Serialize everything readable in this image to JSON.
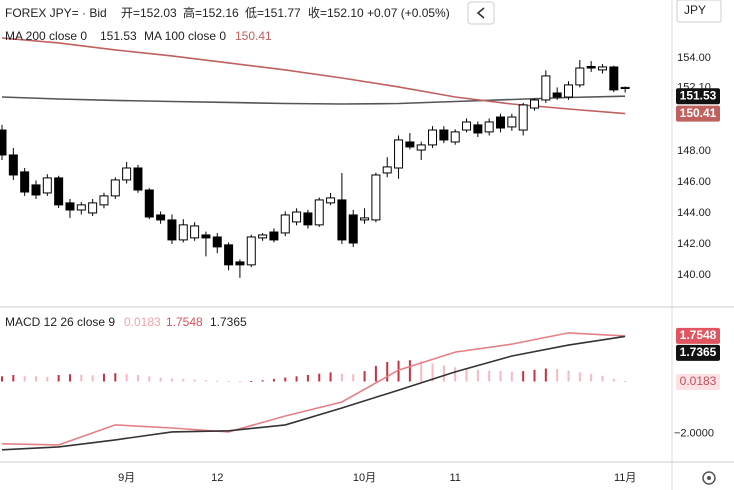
{
  "chart_data": [
    {
      "type": "candlestick",
      "title": "FOREX JPY= · Bid",
      "quote": [
        "开=152.03",
        "高=152.16",
        "低=151.77",
        "收=152.10",
        "+0.07 (+0.05%)"
      ],
      "currency": "JPY",
      "open": [
        149.35,
        147.74,
        146.65,
        145.81,
        145.29,
        146.26,
        144.65,
        144.19,
        144.0,
        144.52,
        145.1,
        146.13,
        146.9,
        145.48,
        143.87,
        143.55,
        142.26,
        142.39,
        142.58,
        142.45,
        141.94,
        140.84,
        140.65,
        142.39,
        142.77,
        142.71,
        143.42,
        144.0,
        143.23,
        144.65,
        144.84,
        143.87,
        143.55,
        143.55,
        146.58,
        146.9,
        148.58,
        148.06,
        148.39,
        149.35,
        148.58,
        149.35,
        149.68,
        149.23,
        150.19,
        149.55,
        149.35,
        150.77,
        151.29,
        151.74,
        151.48,
        152.26,
        153.45,
        153.23,
        153.42,
        152.03
      ],
      "high": [
        149.68,
        148.19,
        146.9,
        146.1,
        146.5,
        146.4,
        144.9,
        144.7,
        144.9,
        145.3,
        146.3,
        147.29,
        147.1,
        145.6,
        144.1,
        143.9,
        143.6,
        143.4,
        142.8,
        142.7,
        142.1,
        141.0,
        142.6,
        142.7,
        143.0,
        144.1,
        144.3,
        144.2,
        145.0,
        145.29,
        146.58,
        144.2,
        144.3,
        146.6,
        147.6,
        149.0,
        149.16,
        148.6,
        149.6,
        149.6,
        149.4,
        150.1,
        149.9,
        150.1,
        150.4,
        150.4,
        151.1,
        151.4,
        153.2,
        152.1,
        152.5,
        153.87,
        153.8,
        153.6,
        153.5,
        152.16
      ],
      "low": [
        147.42,
        146.13,
        145.1,
        144.9,
        145.1,
        144.32,
        143.68,
        143.9,
        143.8,
        144.3,
        144.9,
        145.9,
        145.3,
        143.6,
        143.3,
        142.0,
        142.1,
        142.2,
        141.2,
        141.4,
        140.3,
        139.81,
        140.5,
        142.2,
        142.1,
        142.5,
        143.2,
        143.0,
        143.1,
        144.5,
        142.0,
        141.8,
        143.3,
        143.4,
        146.3,
        146.2,
        148.1,
        147.42,
        148.2,
        148.5,
        148.4,
        149.2,
        148.9,
        149.0,
        149.2,
        149.3,
        149.0,
        150.6,
        151.1,
        151.3,
        151.3,
        152.1,
        153.1,
        153.0,
        151.8,
        151.77
      ],
      "close": [
        147.74,
        146.45,
        145.35,
        145.16,
        146.26,
        144.52,
        144.19,
        144.52,
        144.65,
        145.1,
        146.13,
        146.9,
        145.48,
        143.74,
        143.55,
        142.26,
        143.23,
        143.16,
        142.39,
        141.81,
        140.65,
        140.65,
        142.45,
        142.58,
        142.26,
        143.87,
        144.06,
        143.23,
        144.84,
        144.97,
        142.26,
        142.06,
        143.68,
        146.45,
        146.97,
        148.71,
        148.26,
        148.39,
        149.35,
        148.71,
        149.23,
        149.87,
        149.16,
        149.87,
        149.48,
        150.19,
        150.97,
        151.29,
        152.84,
        151.48,
        152.26,
        153.35,
        153.35,
        153.42,
        151.94,
        152.1
      ],
      "up_color": "#ffffff",
      "down_color": "#000000",
      "last_label": {
        "value": 152.1,
        "label": "152.10"
      },
      "lines": [
        {
          "name": "MA 200 close 0",
          "color": "#555555",
          "x": [
            0,
            5,
            10,
            15,
            20,
            25,
            30,
            35,
            40,
            45,
            50,
            55
          ],
          "values": [
            151.48,
            151.35,
            151.26,
            151.19,
            151.13,
            151.06,
            151.03,
            151.06,
            151.19,
            151.32,
            151.45,
            151.53
          ]
        },
        {
          "name": "MA 100 close 0",
          "color": "#c0605f",
          "x": [
            0,
            5,
            10,
            15,
            20,
            25,
            30,
            35,
            40,
            45,
            50,
            55
          ],
          "values": [
            155.29,
            154.97,
            154.52,
            154.13,
            153.68,
            153.23,
            152.71,
            152.13,
            151.48,
            151.03,
            150.71,
            150.41
          ]
        }
      ],
      "ylim": [
        138.06,
        157.74
      ],
      "yticks": [
        {
          "value": 154,
          "label": "154.00"
        },
        {
          "value": 148,
          "label": "148.00"
        },
        {
          "value": 146,
          "label": "146.00"
        },
        {
          "value": 144,
          "label": "144.00"
        },
        {
          "value": 142,
          "label": "142.00"
        },
        {
          "value": 140,
          "label": "140.00"
        }
      ],
      "xticks": [
        {
          "value": 11,
          "label": "9月"
        },
        {
          "value": 19,
          "label": "12"
        },
        {
          "value": 32,
          "label": "10月"
        },
        {
          "value": 40,
          "label": "11"
        },
        {
          "value": 55,
          "label": "11月"
        }
      ]
    },
    {
      "type": "macd",
      "title": "MACD 12 26 close 9",
      "histogram": {
        "up_color": "#c8303e",
        "down_color": "#f5b9c0",
        "values": [
          0.2,
          0.25,
          0.22,
          0.2,
          0.18,
          0.25,
          0.28,
          0.26,
          0.24,
          0.3,
          0.32,
          0.3,
          0.25,
          0.2,
          0.15,
          0.12,
          0.1,
          0.08,
          0.05,
          0.03,
          0.02,
          0.01,
          0.02,
          0.05,
          0.1,
          0.15,
          0.2,
          0.25,
          0.3,
          0.35,
          0.3,
          0.28,
          0.4,
          0.6,
          0.75,
          0.8,
          0.82,
          0.78,
          0.7,
          0.62,
          0.55,
          0.5,
          0.45,
          0.42,
          0.4,
          0.38,
          0.4,
          0.45,
          0.5,
          0.48,
          0.42,
          0.35,
          0.3,
          0.22,
          0.1,
          0.0183
        ]
      },
      "lines": [
        {
          "color": "#e57f86",
          "x": [
            0,
            5,
            10,
            15,
            20,
            25,
            30,
            35,
            40,
            45,
            50,
            55
          ],
          "values": [
            -2.4,
            -2.44,
            -1.67,
            -1.79,
            -1.94,
            -1.33,
            -0.79,
            0.44,
            1.13,
            1.44,
            1.87,
            1.7548
          ]
        },
        {
          "color": "#333333",
          "x": [
            0,
            5,
            10,
            15,
            20,
            25,
            30,
            35,
            40,
            45,
            50,
            55
          ],
          "values": [
            -2.63,
            -2.52,
            -2.25,
            -1.94,
            -1.9,
            -1.67,
            -1.02,
            -0.33,
            0.37,
            0.98,
            1.4,
            1.7365
          ]
        }
      ],
      "ylim": [
        -3.1,
        2.83
      ],
      "yticks": [
        {
          "value": -2,
          "label": "−2.0000"
        }
      ]
    }
  ]
}
